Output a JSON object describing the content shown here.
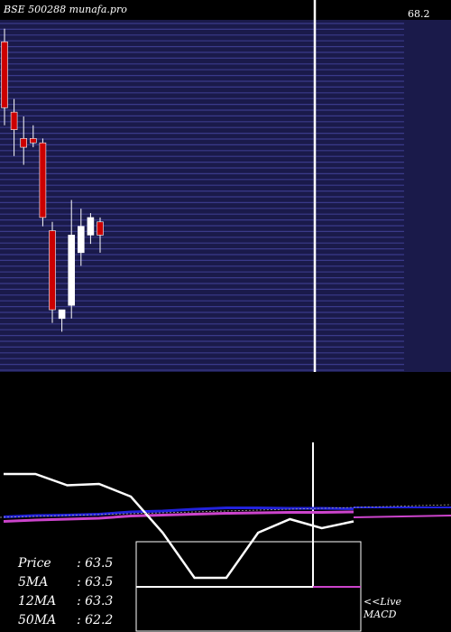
{
  "header": {
    "title": "BSE 500288  munafa.pro"
  },
  "stats": [
    {
      "label": "Price",
      "value": ": 63.5"
    },
    {
      "label": "5MA",
      "value": ": 63.5"
    },
    {
      "label": "12MA",
      "value": ": 63.3"
    },
    {
      "label": "50MA",
      "value": ": 62.2"
    }
  ],
  "macd": {
    "line1": "<<Live",
    "line2": "MACD"
  },
  "colors": {
    "background": "#000000",
    "price_panel": "#1a1a4a",
    "gridline": "#3a3a8a",
    "bearish": "#cc0000",
    "bullish": "#ffffff",
    "ma_blue": "#2222dd",
    "ma_magenta": "#cc44cc"
  },
  "chart_data": {
    "type": "candlestick",
    "price_axis_top_label": "68.2",
    "candles": [
      {
        "open": 67.9,
        "high": 68.2,
        "low": 66.0,
        "close": 66.4
      },
      {
        "open": 66.3,
        "high": 66.6,
        "low": 65.3,
        "close": 65.9
      },
      {
        "open": 65.7,
        "high": 66.2,
        "low": 65.1,
        "close": 65.5
      },
      {
        "open": 65.7,
        "high": 66.0,
        "low": 65.5,
        "close": 65.6
      },
      {
        "open": 65.6,
        "high": 65.7,
        "low": 63.7,
        "close": 63.9
      },
      {
        "open": 63.6,
        "high": 63.8,
        "low": 61.5,
        "close": 61.8
      },
      {
        "open": 61.6,
        "high": 61.8,
        "low": 61.3,
        "close": 61.8
      },
      {
        "open": 61.9,
        "high": 64.3,
        "low": 61.6,
        "close": 63.5
      },
      {
        "open": 63.1,
        "high": 64.1,
        "low": 62.8,
        "close": 63.7
      },
      {
        "open": 63.5,
        "high": 64.0,
        "low": 63.3,
        "close": 63.9
      },
      {
        "open": 63.8,
        "high": 63.9,
        "low": 63.1,
        "close": 63.5
      }
    ],
    "y_range": [
      61.0,
      68.4
    ],
    "moving_averages_panel": {
      "line_white": [
        9.0,
        9.0,
        6.5,
        6.8,
        4.0,
        -4.0,
        -14.0,
        -14.0,
        -4.0,
        -1.0,
        -3.0,
        -1.5
      ],
      "line_blue": [
        -0.5,
        -0.2,
        -0.1,
        0.1,
        0.6,
        0.8,
        1.2,
        1.5,
        1.5,
        1.4,
        1.4,
        1.3
      ],
      "line_magenta": [
        -1.5,
        -1.2,
        -1.0,
        -0.8,
        -0.3,
        -0.1,
        0.1,
        0.3,
        0.4,
        0.5,
        0.5,
        0.6
      ]
    },
    "macd_panel": {
      "histogram": [
        0.0
      ]
    }
  }
}
